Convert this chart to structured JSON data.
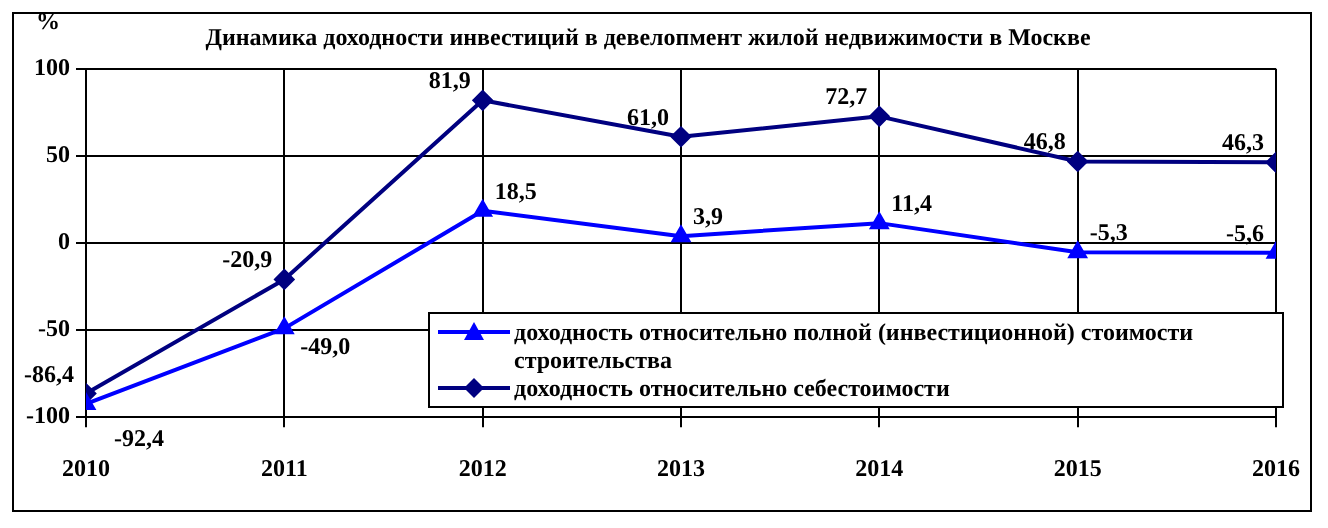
{
  "chart_data": {
    "type": "line",
    "title": "Динамика доходности инвестиций в девелопмент жилой недвижимости в Москве",
    "ylabel": "%",
    "x": [
      2010,
      2011,
      2012,
      2013,
      2014,
      2015,
      2016
    ],
    "series": [
      {
        "name": "доходность относительно полной (инвестиционной) стоимости строительства",
        "color": "#0000ff",
        "marker": "triangle",
        "values": [
          -92.4,
          -49.0,
          18.5,
          3.9,
          11.4,
          -5.3,
          -5.6
        ],
        "value_labels": [
          "-92,4",
          "-49,0",
          "18,5",
          "3,9",
          "11,4",
          "-5,3",
          "-5,6"
        ]
      },
      {
        "name": "доходность относительно себестоимости",
        "color": "#000080",
        "marker": "diamond",
        "values": [
          -86.4,
          -20.9,
          81.9,
          61.0,
          72.7,
          46.8,
          46.3
        ],
        "value_labels": [
          "-86,4",
          "-20,9",
          "81,9",
          "61,0",
          "72,7",
          "46,8",
          "46,3"
        ]
      }
    ],
    "xlim": [
      2010,
      2016
    ],
    "xticks": [
      2010,
      2011,
      2012,
      2013,
      2014,
      2015,
      2016
    ],
    "ylim": [
      -100,
      100
    ],
    "yticks": [
      -100,
      -50,
      0,
      50,
      100
    ],
    "grid": true,
    "legend": "bottom right",
    "line_style": "solid"
  }
}
